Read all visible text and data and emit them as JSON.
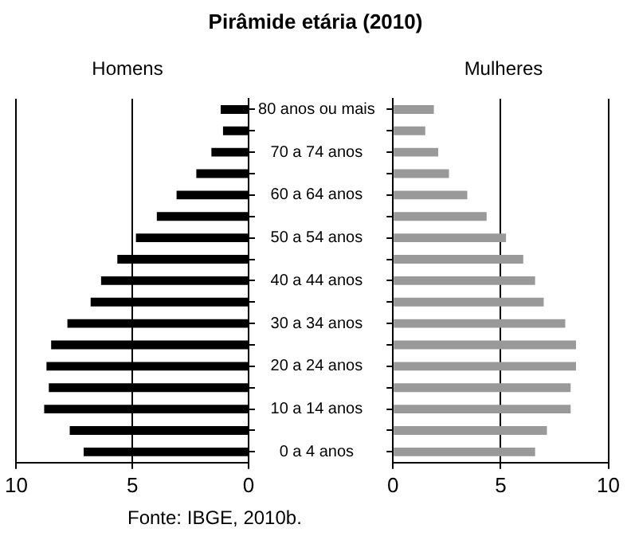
{
  "chart_data": [
    {
      "type": "bar",
      "orientation": "horizontal",
      "title": "Pirâmide etária (2010)",
      "subtitle": "Homens",
      "categories": [
        "80 anos ou mais",
        null,
        "70 a 74 anos",
        null,
        "60 a 64 anos",
        null,
        "50 a 54 anos",
        null,
        "40 a 44 anos",
        null,
        "30 a 34 anos",
        null,
        "20 a 24 anos",
        null,
        "10 a 14 anos",
        null,
        "0 a 4 anos"
      ],
      "series": [
        {
          "color": "#000000",
          "values": [
            1.2,
            1.1,
            1.6,
            2.25,
            3.1,
            3.95,
            4.85,
            5.65,
            6.35,
            6.8,
            7.8,
            8.5,
            8.7,
            8.6,
            8.8,
            7.7,
            7.1
          ]
        }
      ],
      "xlim": [
        10,
        0
      ],
      "xticks": [
        10,
        5,
        0
      ],
      "grid": "x",
      "annotations": [
        "Fonte: IBGE, 2010b."
      ]
    },
    {
      "type": "bar",
      "orientation": "horizontal",
      "subtitle": "Mulheres",
      "categories": [
        null,
        null,
        null,
        null,
        null,
        null,
        null,
        null,
        null,
        null,
        null,
        null,
        null,
        null,
        null,
        null,
        null
      ],
      "series": [
        {
          "color": "#999999",
          "values": [
            1.9,
            1.5,
            2.1,
            2.6,
            3.45,
            4.35,
            5.25,
            6.05,
            6.6,
            7.0,
            8.0,
            8.5,
            8.5,
            8.25,
            8.25,
            7.15,
            6.6
          ]
        }
      ],
      "xlim": [
        0,
        10
      ],
      "xticks": [
        0,
        5,
        10
      ],
      "grid": "x",
      "tick_labels": "x"
    }
  ]
}
